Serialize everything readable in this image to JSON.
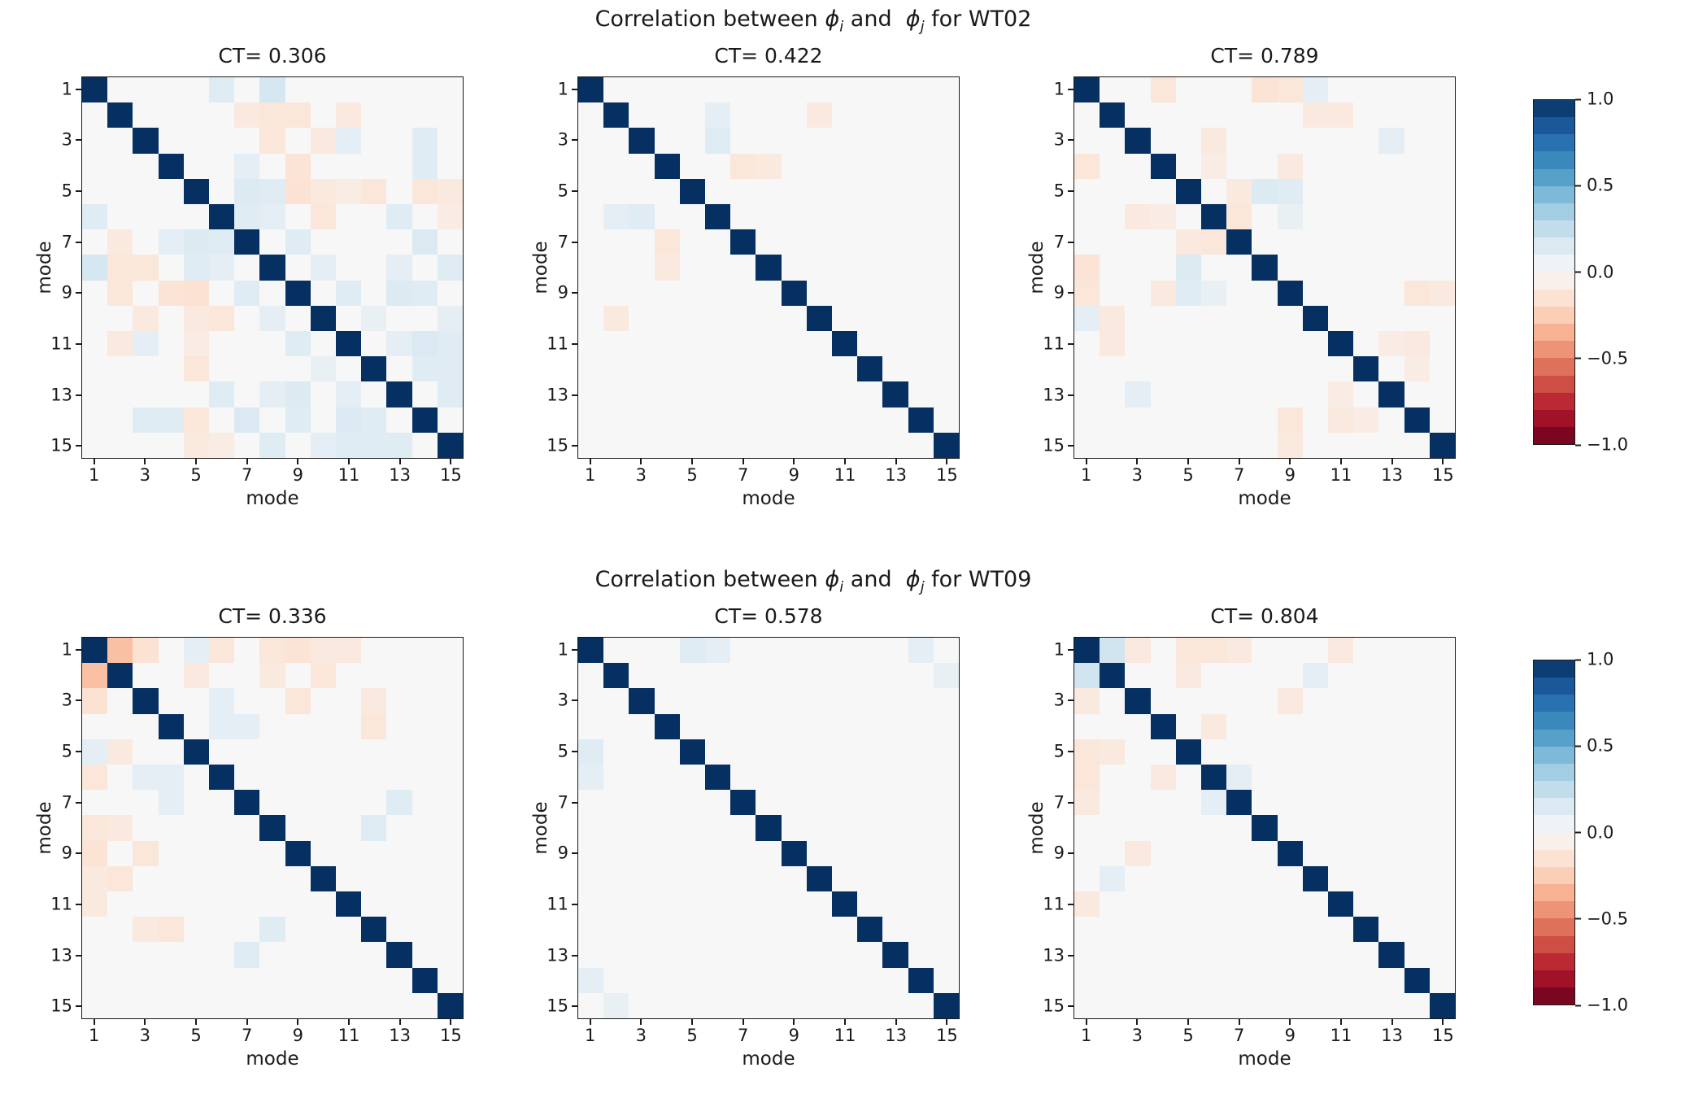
{
  "suptitles": [
    {
      "prefix": "Correlation between ",
      "phi": "ϕ",
      "sub_i": "i",
      "mid": " and  ",
      "sub_j": "j",
      "suffix": " for WT02"
    },
    {
      "prefix": "Correlation between ",
      "phi": "ϕ",
      "sub_i": "i",
      "mid": " and  ",
      "sub_j": "j",
      "suffix": " for WT09"
    }
  ],
  "axis": {
    "xlabel": "mode",
    "ylabel": "mode",
    "tick_labels": [
      1,
      3,
      5,
      7,
      9,
      11,
      13,
      15
    ],
    "n_modes": 15
  },
  "colorbar": {
    "levels": 20,
    "vmin": -1,
    "vmax": 1,
    "ticks": [
      {
        "label": "1.0",
        "value": 1
      },
      {
        "label": "0.5",
        "value": 0.5
      },
      {
        "label": "0.0",
        "value": 0
      },
      {
        "label": "−0.5",
        "value": -0.5
      },
      {
        "label": "−1.0",
        "value": -1
      }
    ]
  },
  "colormap": {
    "name": "RdBu",
    "anchors": [
      {
        "t": 0.0,
        "rgb": [
          103,
          0,
          31
        ]
      },
      {
        "t": 0.1,
        "rgb": [
          178,
          24,
          43
        ]
      },
      {
        "t": 0.2,
        "rgb": [
          214,
          96,
          77
        ]
      },
      {
        "t": 0.3,
        "rgb": [
          244,
          165,
          130
        ]
      },
      {
        "t": 0.4,
        "rgb": [
          253,
          219,
          199
        ]
      },
      {
        "t": 0.5,
        "rgb": [
          247,
          247,
          247
        ]
      },
      {
        "t": 0.6,
        "rgb": [
          209,
          229,
          240
        ]
      },
      {
        "t": 0.7,
        "rgb": [
          146,
          197,
          222
        ]
      },
      {
        "t": 0.8,
        "rgb": [
          67,
          147,
          195
        ]
      },
      {
        "t": 0.9,
        "rgb": [
          33,
          102,
          172
        ]
      },
      {
        "t": 1.0,
        "rgb": [
          5,
          48,
          97
        ]
      }
    ]
  },
  "chart_data": [
    {
      "type": "heatmap",
      "group": "WT02",
      "title": "CT= 0.306",
      "n": 15,
      "diagonal": 1.0,
      "default": 0.0,
      "symmetric": true,
      "cells": [
        [
          1,
          6,
          0.12
        ],
        [
          1,
          8,
          0.18
        ],
        [
          2,
          7,
          -0.1
        ],
        [
          2,
          8,
          -0.12
        ],
        [
          2,
          9,
          -0.12
        ],
        [
          2,
          11,
          -0.1
        ],
        [
          3,
          8,
          -0.12
        ],
        [
          3,
          10,
          -0.1
        ],
        [
          3,
          11,
          0.1
        ],
        [
          3,
          14,
          0.12
        ],
        [
          4,
          7,
          0.1
        ],
        [
          4,
          9,
          -0.14
        ],
        [
          4,
          14,
          0.12
        ],
        [
          5,
          7,
          0.14
        ],
        [
          5,
          8,
          0.12
        ],
        [
          5,
          9,
          -0.15
        ],
        [
          5,
          10,
          -0.1
        ],
        [
          5,
          11,
          -0.08
        ],
        [
          5,
          12,
          -0.12
        ],
        [
          5,
          14,
          -0.12
        ],
        [
          5,
          15,
          -0.1
        ],
        [
          6,
          7,
          0.12
        ],
        [
          6,
          8,
          0.1
        ],
        [
          6,
          10,
          -0.12
        ],
        [
          6,
          13,
          0.12
        ],
        [
          6,
          15,
          -0.08
        ],
        [
          7,
          9,
          0.12
        ],
        [
          7,
          14,
          0.15
        ],
        [
          8,
          10,
          0.1
        ],
        [
          8,
          13,
          0.1
        ],
        [
          8,
          15,
          0.12
        ],
        [
          9,
          11,
          0.12
        ],
        [
          9,
          13,
          0.14
        ],
        [
          9,
          14,
          0.12
        ],
        [
          10,
          12,
          0.08
        ],
        [
          10,
          15,
          0.1
        ],
        [
          11,
          13,
          0.1
        ],
        [
          11,
          14,
          0.15
        ],
        [
          11,
          15,
          0.12
        ],
        [
          12,
          14,
          0.12
        ],
        [
          12,
          15,
          0.12
        ],
        [
          13,
          15,
          0.12
        ]
      ]
    },
    {
      "type": "heatmap",
      "group": "WT02",
      "title": "CT= 0.422",
      "n": 15,
      "diagonal": 1.0,
      "default": 0.0,
      "symmetric": true,
      "cells": [
        [
          2,
          6,
          0.1
        ],
        [
          2,
          10,
          -0.1
        ],
        [
          3,
          6,
          0.12
        ],
        [
          4,
          7,
          -0.12
        ],
        [
          4,
          8,
          -0.1
        ]
      ]
    },
    {
      "type": "heatmap",
      "group": "WT02",
      "title": "CT= 0.789",
      "n": 15,
      "diagonal": 1.0,
      "default": 0.0,
      "symmetric": true,
      "cells": [
        [
          1,
          4,
          -0.12
        ],
        [
          1,
          8,
          -0.14
        ],
        [
          1,
          9,
          -0.12
        ],
        [
          1,
          10,
          0.1
        ],
        [
          2,
          10,
          -0.1
        ],
        [
          2,
          11,
          -0.1
        ],
        [
          3,
          6,
          -0.1
        ],
        [
          3,
          13,
          0.1
        ],
        [
          4,
          6,
          -0.08
        ],
        [
          4,
          9,
          -0.1
        ],
        [
          5,
          7,
          -0.1
        ],
        [
          5,
          8,
          0.14
        ],
        [
          5,
          9,
          0.12
        ],
        [
          6,
          7,
          -0.12
        ],
        [
          6,
          9,
          0.08
        ],
        [
          9,
          14,
          -0.12
        ],
        [
          9,
          15,
          -0.1
        ],
        [
          11,
          13,
          -0.08
        ],
        [
          11,
          14,
          -0.1
        ],
        [
          12,
          14,
          -0.08
        ]
      ]
    },
    {
      "type": "heatmap",
      "group": "WT09",
      "title": "CT= 0.336",
      "n": 15,
      "diagonal": 1.0,
      "default": 0.0,
      "symmetric": true,
      "cells": [
        [
          1,
          2,
          -0.3
        ],
        [
          1,
          3,
          -0.15
        ],
        [
          1,
          5,
          0.1
        ],
        [
          1,
          6,
          -0.12
        ],
        [
          1,
          8,
          -0.12
        ],
        [
          1,
          9,
          -0.14
        ],
        [
          1,
          10,
          -0.1
        ],
        [
          1,
          11,
          -0.1
        ],
        [
          2,
          5,
          -0.1
        ],
        [
          2,
          8,
          -0.1
        ],
        [
          2,
          10,
          -0.12
        ],
        [
          3,
          6,
          0.1
        ],
        [
          3,
          9,
          -0.12
        ],
        [
          3,
          12,
          -0.1
        ],
        [
          4,
          6,
          0.1
        ],
        [
          4,
          7,
          0.1
        ],
        [
          4,
          12,
          -0.12
        ],
        [
          7,
          13,
          0.12
        ],
        [
          8,
          12,
          0.12
        ]
      ]
    },
    {
      "type": "heatmap",
      "group": "WT09",
      "title": "CT= 0.578",
      "n": 15,
      "diagonal": 1.0,
      "default": 0.0,
      "symmetric": true,
      "cells": [
        [
          1,
          5,
          0.12
        ],
        [
          1,
          6,
          0.1
        ],
        [
          1,
          14,
          0.1
        ],
        [
          2,
          15,
          0.08
        ]
      ]
    },
    {
      "type": "heatmap",
      "group": "WT09",
      "title": "CT= 0.804",
      "n": 15,
      "diagonal": 1.0,
      "default": 0.0,
      "symmetric": true,
      "cells": [
        [
          1,
          2,
          0.2
        ],
        [
          1,
          3,
          -0.1
        ],
        [
          1,
          5,
          -0.12
        ],
        [
          1,
          6,
          -0.12
        ],
        [
          1,
          7,
          -0.1
        ],
        [
          1,
          11,
          -0.1
        ],
        [
          2,
          5,
          -0.1
        ],
        [
          2,
          10,
          0.1
        ],
        [
          3,
          9,
          -0.1
        ],
        [
          4,
          6,
          -0.1
        ],
        [
          6,
          7,
          0.1
        ]
      ]
    }
  ]
}
